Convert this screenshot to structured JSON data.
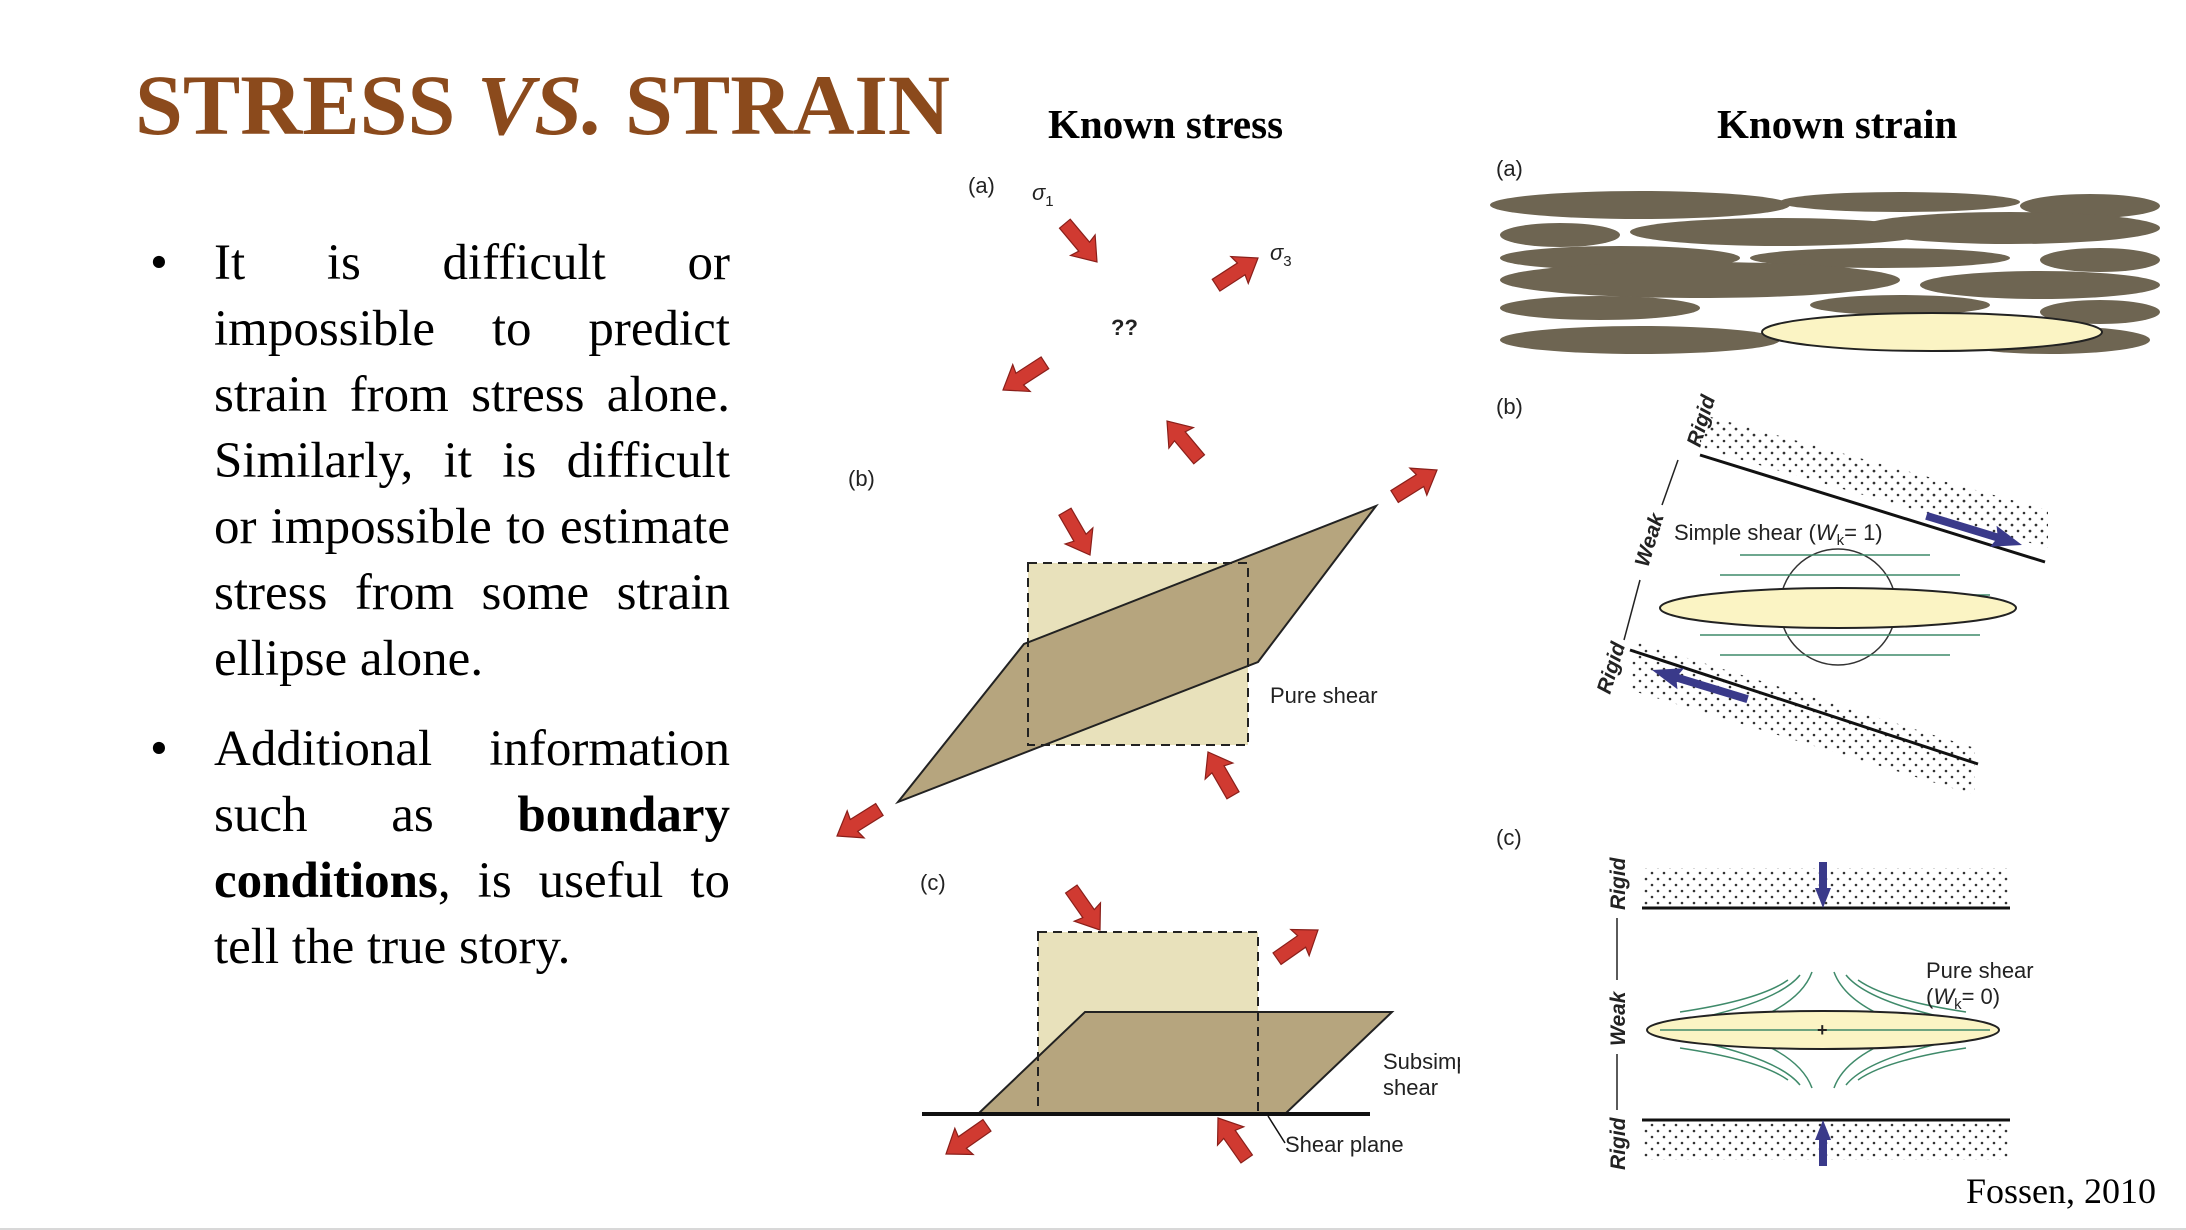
{
  "slide": {
    "title_part1": "STRESS ",
    "title_part2": "VS.",
    "title_part3": " STRAIN",
    "bullet1": "It is difficult or impossible to predict strain from stress alone. Similarly, it is difficult or impossible to estimate stress from some strain ellipse alone.",
    "bullet2_pre": "Additional information such as ",
    "bullet2_bold": "boundary conditions",
    "bullet2_post": ", is useful to tell the true story.",
    "credit": "Fossen, 2010"
  },
  "known_stress": {
    "heading": "Known stress",
    "panel_a": {
      "label": "(a)",
      "sigma1": "σ",
      "sigma1_sub": "1",
      "sigma3": "σ",
      "sigma3_sub": "3",
      "center_text": "??"
    },
    "panel_b": {
      "label": "(b)",
      "caption": "Pure shear"
    },
    "panel_c": {
      "label": "(c)",
      "caption_line1": "Subsimpl",
      "caption_line2": "shear",
      "shear_plane": "Shear plane"
    }
  },
  "known_strain": {
    "heading": "Known strain",
    "panel_a": {
      "label": "(a)"
    },
    "panel_b": {
      "label": "(b)",
      "rigid_top": "Rigid",
      "weak": "Weak",
      "rigid_bottom": "Rigid",
      "caption_pre": "Simple shear (",
      "caption_w": "W",
      "caption_sub": "k",
      "caption_post": "= 1)"
    },
    "panel_c": {
      "label": "(c)",
      "rigid_top": "Rigid",
      "weak": "Weak",
      "rigid_bottom": "Rigid",
      "caption_line1": "Pure shear",
      "caption_pre": "(",
      "caption_w": "W",
      "caption_sub": "k",
      "caption_post": "= 0)",
      "center_mark": "+"
    }
  },
  "colors": {
    "title": "#8b4a1c",
    "arrow_red": "#d03a31",
    "arrow_blue": "#3a3a8a",
    "rock_brown": "#6e6552",
    "ellipse_fill": "#fbf4c4",
    "shape_tan": "#b6a57e",
    "box_fill": "#e8e1bb",
    "flow_green": "#3f8a6a"
  }
}
